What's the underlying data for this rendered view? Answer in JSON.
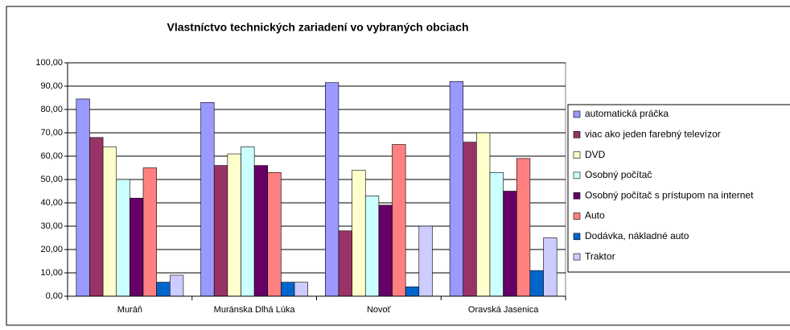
{
  "chart_data": {
    "type": "bar",
    "title": "Vlastníctvo technických zariadení vo vybraných obciach",
    "categories": [
      "Muráň",
      "Muránska Dlhá Lúka",
      "Novoť",
      "Oravská Jasenica"
    ],
    "series": [
      {
        "name": "automatická práčka",
        "color": "#9999ff",
        "values": [
          84.5,
          83,
          91.5,
          92
        ]
      },
      {
        "name": "viac ako jeden farebný televízor",
        "color": "#993366",
        "values": [
          68,
          56,
          28,
          66
        ]
      },
      {
        "name": "DVD",
        "color": "#ffffcc",
        "values": [
          64,
          61,
          54,
          70
        ]
      },
      {
        "name": "Osobný počítač",
        "color": "#ccffff",
        "values": [
          50,
          64,
          43,
          53
        ]
      },
      {
        "name": "Osobný počítač s prístupom na internet",
        "color": "#660066",
        "values": [
          42,
          56,
          39,
          45
        ]
      },
      {
        "name": "Auto",
        "color": "#ff8080",
        "values": [
          55,
          53,
          65,
          59
        ]
      },
      {
        "name": "Dodávka, nákladné auto",
        "color": "#0066cc",
        "values": [
          6,
          6,
          4,
          11
        ]
      },
      {
        "name": "Traktor",
        "color": "#ccccff",
        "values": [
          9,
          6,
          30,
          25
        ]
      }
    ],
    "ylim": [
      0,
      100
    ],
    "yticks": [
      {
        "value": 0,
        "label": "0,00"
      },
      {
        "value": 10,
        "label": "10,00"
      },
      {
        "value": 20,
        "label": "20,00"
      },
      {
        "value": 30,
        "label": "30,00"
      },
      {
        "value": 40,
        "label": "40,00"
      },
      {
        "value": 50,
        "label": "50,00"
      },
      {
        "value": 60,
        "label": "60,00"
      },
      {
        "value": 70,
        "label": "70,00"
      },
      {
        "value": 80,
        "label": "80,00"
      },
      {
        "value": 90,
        "label": "90,00"
      },
      {
        "value": 100,
        "label": "100,00"
      }
    ],
    "grid": true,
    "legend": "right"
  }
}
